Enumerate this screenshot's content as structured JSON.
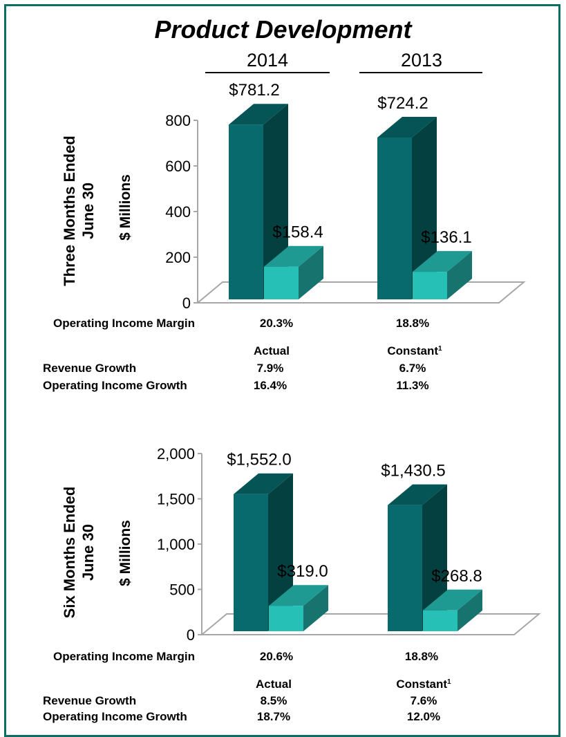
{
  "title": "Product Development",
  "years": [
    "2014",
    "2013"
  ],
  "colors": {
    "revenue": "#086a6c",
    "operating_income": "#27c0b6",
    "border": "#0b6d64"
  },
  "chart_data": [
    {
      "type": "bar",
      "categories": [
        "2014",
        "2013"
      ],
      "series": [
        {
          "values": [
            781.2,
            724.2
          ],
          "labels": [
            "$781.2",
            "$724.2"
          ]
        },
        {
          "values": [
            158.4,
            136.1
          ],
          "labels": [
            "$158.4",
            "$136.1"
          ]
        }
      ],
      "ylabel": "$ Millions",
      "side_label": [
        "Three Months Ended",
        "June 30"
      ],
      "ylim": [
        0,
        800
      ],
      "yticks": [
        0,
        200,
        400,
        600,
        800
      ],
      "ytick_labels": [
        "0",
        "200",
        "400",
        "600",
        "800"
      ],
      "grid": false
    },
    {
      "type": "bar",
      "categories": [
        "2014",
        "2013"
      ],
      "series": [
        {
          "values": [
            1552.0,
            1430.5
          ],
          "labels": [
            "$1,552.0",
            "$1,430.5"
          ]
        },
        {
          "values": [
            319.0,
            268.8
          ],
          "labels": [
            "$319.0",
            "$268.8"
          ]
        }
      ],
      "ylabel": "$ Millions",
      "side_label": [
        "Six Months Ended",
        "June 30"
      ],
      "ylim": [
        0,
        2000
      ],
      "yticks": [
        0,
        500,
        1000,
        1500,
        2000
      ],
      "ytick_labels": [
        "0",
        "500",
        "1,000",
        "1,500",
        "2,000"
      ],
      "grid": false
    }
  ],
  "three_months": {
    "margin_label": "Operating Income Margin",
    "margins": [
      "20.3%",
      "18.8%"
    ],
    "col_actual": "Actual",
    "col_constant": "Constant",
    "footnote": "1",
    "revenue_growth_label": "Revenue Growth",
    "revenue_growth": [
      "7.9%",
      "6.7%"
    ],
    "oi_growth_label": "Operating Income Growth",
    "oi_growth": [
      "16.4%",
      "11.3%"
    ]
  },
  "six_months": {
    "margin_label": "Operating Income Margin",
    "margins": [
      "20.6%",
      "18.8%"
    ],
    "col_actual": "Actual",
    "col_constant": "Constant",
    "footnote": "1",
    "revenue_growth_label": "Revenue Growth",
    "revenue_growth": [
      "8.5%",
      "7.6%"
    ],
    "oi_growth_label": "Operating Income Growth",
    "oi_growth": [
      "18.7%",
      "12.0%"
    ]
  }
}
